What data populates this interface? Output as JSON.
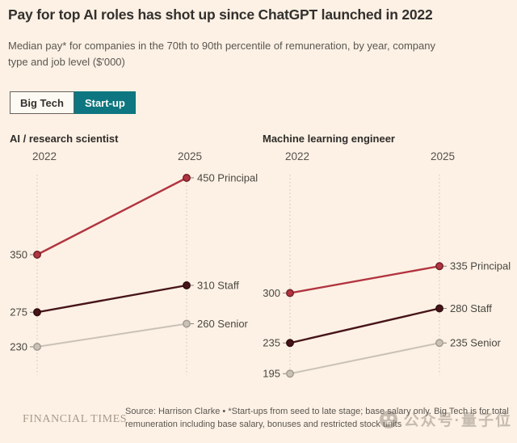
{
  "header": {
    "title": "Pay for top AI roles has shot up since ChatGPT launched in 2022",
    "subtitle": "Median pay* for companies in the 70th to 90th percentile of remuneration, by year, company type and job level ($'000)"
  },
  "toggle": {
    "options": [
      {
        "label": "Big Tech",
        "active": false
      },
      {
        "label": "Start-up",
        "active": true
      }
    ]
  },
  "colors": {
    "background": "#fcf1e4",
    "accent_teal": "#0d7680",
    "principal": "#b23440",
    "staff": "#471419",
    "senior": "#cbc2b7",
    "gridline": "#d8cabb"
  },
  "chart_data": [
    {
      "type": "line",
      "title": "AI / research scientist",
      "x": [
        "2022",
        "2025"
      ],
      "series": [
        {
          "name": "Principal",
          "values": [
            350,
            450
          ],
          "color": "#b23440",
          "dot_stroke": "#6e2028"
        },
        {
          "name": "Staff",
          "values": [
            275,
            310
          ],
          "color": "#471419",
          "dot_stroke": "#2e0c0f"
        },
        {
          "name": "Senior",
          "values": [
            230,
            260
          ],
          "color": "#cbc2b7",
          "dot_stroke": "#a39a8e"
        }
      ],
      "ylabel": "$'000",
      "ylim": [
        190,
        470
      ],
      "grid": "vertical-dotted",
      "legend": "inline-labels"
    },
    {
      "type": "line",
      "title": "Machine learning engineer",
      "x": [
        "2022",
        "2025"
      ],
      "series": [
        {
          "name": "Principal",
          "values": [
            300,
            335
          ],
          "color": "#b23440",
          "dot_stroke": "#6e2028"
        },
        {
          "name": "Staff",
          "values": [
            235,
            280
          ],
          "color": "#471419",
          "dot_stroke": "#2e0c0f"
        },
        {
          "name": "Senior",
          "values": [
            195,
            235
          ],
          "color": "#cbc2b7",
          "dot_stroke": "#a39a8e"
        }
      ],
      "ylabel": "$'000",
      "ylim": [
        190,
        470
      ],
      "grid": "vertical-dotted",
      "legend": "inline-labels"
    }
  ],
  "footer": {
    "logo": "FINANCIAL TIMES",
    "source": "Source: Harrison Clarke • *Start-ups from seed to late stage; base salary only. Big Tech is for total remuneration including base salary, bonuses and restricted stock units",
    "watermark": "公众号·量子位"
  }
}
